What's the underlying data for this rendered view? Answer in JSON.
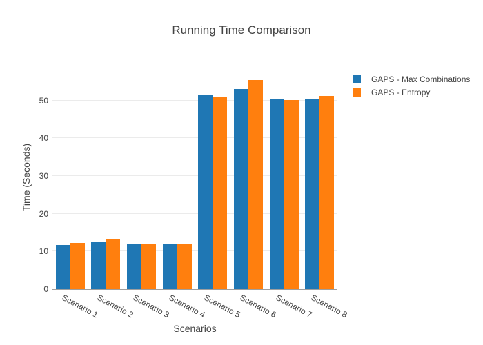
{
  "title": "Running Time Comparison",
  "colors": {
    "series_blue": "#1f77b4",
    "series_orange": "#ff7f0e",
    "text": "#444444",
    "gridline": "#ebebeb",
    "axis_line": "#9f9f9f",
    "background": "#ffffff"
  },
  "chart_data": {
    "type": "bar",
    "title": "Running Time Comparison",
    "xlabel": "Scenarios",
    "ylabel": "Time (Seconds)",
    "categories": [
      "Scenario 1",
      "Scenario 2",
      "Scenario 3",
      "Scenario 4",
      "Scenario 5",
      "Scenario 6",
      "Scenario 7",
      "Scenario 8"
    ],
    "series": [
      {
        "name": "GAPS - Max Combinations",
        "color": "#1f77b4",
        "values": [
          11.8,
          12.6,
          12.1,
          11.9,
          51.6,
          53.0,
          50.6,
          50.4
        ]
      },
      {
        "name": "GAPS - Entropy",
        "color": "#ff7f0e",
        "values": [
          12.3,
          13.1,
          12.1,
          12.0,
          50.9,
          55.5,
          50.1,
          51.2
        ]
      }
    ],
    "yticks": [
      0,
      10,
      20,
      30,
      40,
      50
    ],
    "ylim": [
      0,
      59.3
    ],
    "grid": true,
    "tick_angle": 28,
    "legend_position": "right"
  }
}
